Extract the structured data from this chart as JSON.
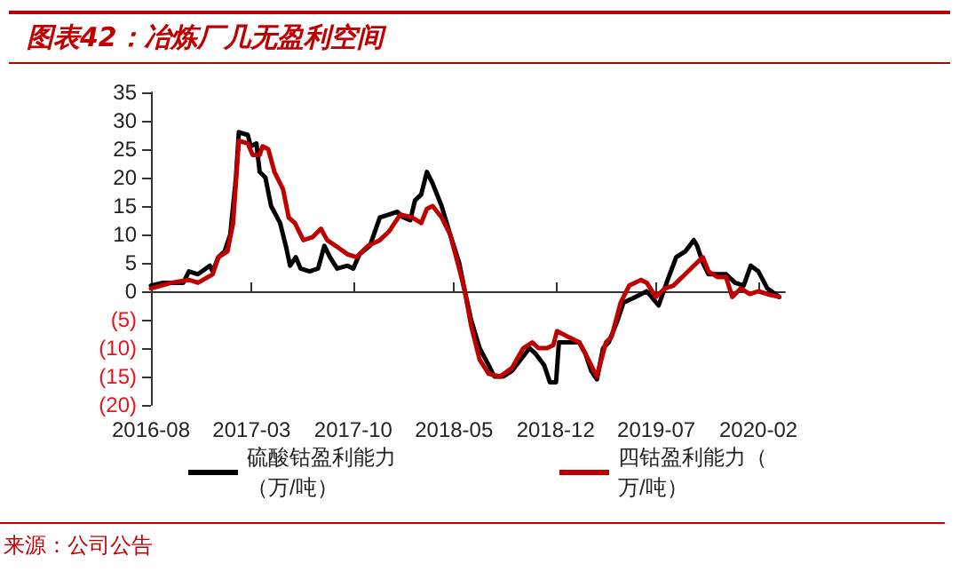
{
  "chart_data": {
    "type": "line",
    "title": "图表42：冶炼厂几无盈利空间",
    "annotations": [
      "来源：公司公告"
    ],
    "xlim": [
      "2016-08-01",
      "2020-03-28"
    ],
    "xticks": [
      "2016-08",
      "2017-03",
      "2017-10",
      "2018-05",
      "2018-12",
      "2019-07",
      "2020-02"
    ],
    "ylim": [
      -20,
      35
    ],
    "yticks": [
      {
        "value": -20,
        "label": "(20)"
      },
      {
        "value": -15,
        "label": "(15)"
      },
      {
        "value": -10,
        "label": "(10)"
      },
      {
        "value": -5,
        "label": "(5)"
      },
      0,
      5,
      10,
      15,
      20,
      25,
      30,
      35
    ],
    "legend": "bottom",
    "marker": "none",
    "line_style": "solid",
    "series": [
      {
        "name": "硫酸钴盈利能力（万/吨）",
        "color": "#000000",
        "x": [
          "2016-08-01",
          "2016-08-26",
          "2016-10-08",
          "2016-10-20",
          "2016-11-08",
          "2016-12-03",
          "2016-12-09",
          "2016-12-21",
          "2017-01-03",
          "2017-01-15",
          "2017-01-27",
          "2017-02-02",
          "2017-02-21",
          "2017-02-27",
          "2017-03-11",
          "2017-03-18",
          "2017-03-30",
          "2017-04-11",
          "2017-04-30",
          "2017-05-12",
          "2017-05-21",
          "2017-06-02",
          "2017-06-12",
          "2017-07-01",
          "2017-07-19",
          "2017-08-01",
          "2017-08-13",
          "2017-08-28",
          "2017-09-19",
          "2017-10-01",
          "2017-10-14",
          "2017-11-05",
          "2017-11-26",
          "2017-12-15",
          "2018-01-02",
          "2018-01-14",
          "2018-01-29",
          "2018-02-08",
          "2018-02-21",
          "2018-03-05",
          "2018-03-17",
          "2018-04-05",
          "2018-04-23",
          "2018-05-12",
          "2018-05-24",
          "2018-06-06",
          "2018-06-24",
          "2018-07-13",
          "2018-07-25",
          "2018-08-13",
          "2018-08-31",
          "2018-09-19",
          "2018-10-07",
          "2018-10-20",
          "2018-11-07",
          "2018-11-19",
          "2018-12-02",
          "2018-12-08",
          "2018-12-27",
          "2019-01-20",
          "2019-02-02",
          "2019-02-14",
          "2019-02-26",
          "2019-03-11",
          "2019-03-23",
          "2019-04-11",
          "2019-04-23",
          "2019-05-18",
          "2019-06-11",
          "2019-07-06",
          "2019-07-25",
          "2019-08-12",
          "2019-08-31",
          "2019-09-18",
          "2019-09-25",
          "2019-10-07",
          "2019-10-19",
          "2019-11-07",
          "2019-11-25",
          "2019-12-14",
          "2020-01-01",
          "2020-01-16",
          "2020-02-01",
          "2020-02-20",
          "2020-03-16"
        ],
        "values": [
          1,
          1.5,
          1.5,
          3.5,
          3,
          4.5,
          3.5,
          6,
          7,
          10,
          20,
          28,
          27.5,
          25.5,
          26,
          21,
          20,
          15,
          12,
          8,
          4.5,
          6,
          4,
          3.5,
          4,
          8,
          6,
          4,
          4.5,
          4,
          6.5,
          8,
          13,
          13.5,
          14,
          13,
          12.5,
          16,
          17,
          21,
          19,
          15,
          10,
          5,
          0,
          -5,
          -10,
          -13,
          -15,
          -15,
          -14,
          -12,
          -10,
          -11,
          -13,
          -16,
          -16,
          -9,
          -9,
          -9,
          -11,
          -14,
          -15.5,
          -10,
          -9,
          -5,
          -2,
          -1,
          0,
          -2.5,
          2,
          6,
          7,
          9,
          8,
          5,
          3,
          3,
          3,
          1.5,
          1,
          4.5,
          3.5,
          0.5,
          -1
        ]
      },
      {
        "name": "四钴盈利能力（万/吨）",
        "color": "#c00000",
        "x": [
          "2016-08-01",
          "2016-09-13",
          "2016-10-20",
          "2016-11-08",
          "2016-12-09",
          "2016-12-21",
          "2017-01-09",
          "2017-01-21",
          "2017-02-02",
          "2017-02-21",
          "2017-03-03",
          "2017-03-18",
          "2017-03-24",
          "2017-04-05",
          "2017-04-18",
          "2017-05-06",
          "2017-05-18",
          "2017-05-31",
          "2017-06-18",
          "2017-07-07",
          "2017-07-25",
          "2017-08-07",
          "2017-08-25",
          "2017-09-19",
          "2017-10-08",
          "2017-11-01",
          "2017-11-26",
          "2017-12-15",
          "2018-01-08",
          "2018-02-02",
          "2018-02-21",
          "2018-03-05",
          "2018-03-17",
          "2018-04-05",
          "2018-04-23",
          "2018-05-12",
          "2018-05-24",
          "2018-06-06",
          "2018-06-24",
          "2018-07-13",
          "2018-08-06",
          "2018-08-31",
          "2018-09-24",
          "2018-10-13",
          "2018-10-26",
          "2018-11-13",
          "2018-11-26",
          "2018-12-04",
          "2018-12-27",
          "2019-01-20",
          "2019-02-08",
          "2019-02-26",
          "2019-03-17",
          "2019-03-29",
          "2019-04-17",
          "2019-05-05",
          "2019-05-30",
          "2019-06-11",
          "2019-06-30",
          "2019-07-19",
          "2019-08-06",
          "2019-08-31",
          "2019-09-18",
          "2019-10-07",
          "2019-10-19",
          "2019-11-07",
          "2019-11-25",
          "2019-12-08",
          "2019-12-26",
          "2020-01-14",
          "2020-02-01",
          "2020-02-20",
          "2020-03-16"
        ],
        "values": [
          0.5,
          1.5,
          2,
          1.5,
          3,
          6,
          7,
          12,
          26.5,
          26,
          24,
          24,
          25.5,
          25,
          21,
          18,
          13,
          12,
          9,
          9.5,
          11,
          9,
          8,
          6.5,
          6,
          8,
          9,
          10.5,
          13.5,
          13,
          12,
          14.5,
          15,
          13,
          10,
          4,
          0,
          -6,
          -12,
          -14.5,
          -15,
          -13.5,
          -10,
          -9,
          -10,
          -10,
          -9.5,
          -7,
          -8,
          -9,
          -12,
          -15,
          -9,
          -8,
          -2,
          1,
          2,
          1.5,
          -1,
          0.5,
          1,
          3,
          4.5,
          6,
          3.5,
          2.5,
          2.5,
          -1,
          0.5,
          -0.5,
          0,
          -0.5,
          -1
        ]
      }
    ]
  }
}
